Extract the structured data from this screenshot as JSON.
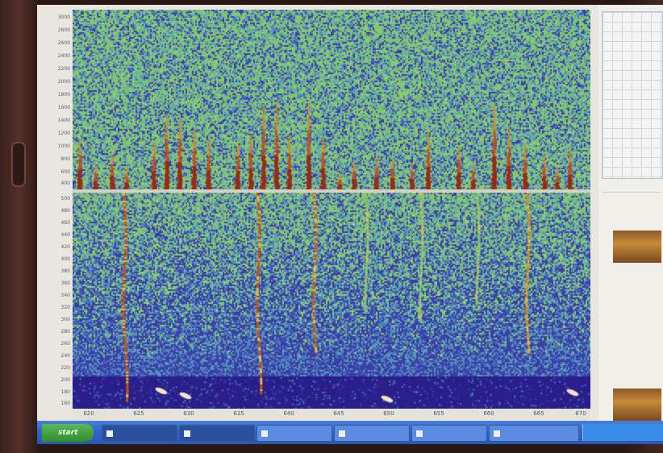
{
  "top_panel": {
    "y_ticks": [
      "3000",
      "2800",
      "2600",
      "2400",
      "2200",
      "2000",
      "1800",
      "1600",
      "1400",
      "1200",
      "1000",
      "800",
      "600",
      "400"
    ]
  },
  "bottom_panel": {
    "y_ticks": [
      "500",
      "480",
      "460",
      "440",
      "420",
      "400",
      "380",
      "360",
      "340",
      "320",
      "300",
      "280",
      "260",
      "240",
      "220",
      "200",
      "180",
      "160"
    ]
  },
  "x_axis": {
    "ticks": [
      "620",
      "625",
      "630",
      "635",
      "640",
      "645",
      "650",
      "655",
      "660",
      "665",
      "670"
    ]
  },
  "right_panel": {
    "rows": [
      "",
      "",
      "",
      "",
      "",
      "",
      ""
    ]
  },
  "taskbar": {
    "start_label": "start",
    "tasks": [
      {
        "label": "",
        "active": true
      },
      {
        "label": "",
        "active": true
      },
      {
        "label": "",
        "active": false
      },
      {
        "label": "",
        "active": false
      },
      {
        "label": "",
        "active": false
      },
      {
        "label": "",
        "active": false
      },
      {
        "label": "",
        "active": false
      }
    ]
  },
  "colors": {
    "spectrogram_background": "#7fc07a",
    "spectrogram_low": "#3b3fa8",
    "spectrogram_high": "#c0501e",
    "taskbar": "#3566c9",
    "start_button": "#2e8f2a"
  }
}
